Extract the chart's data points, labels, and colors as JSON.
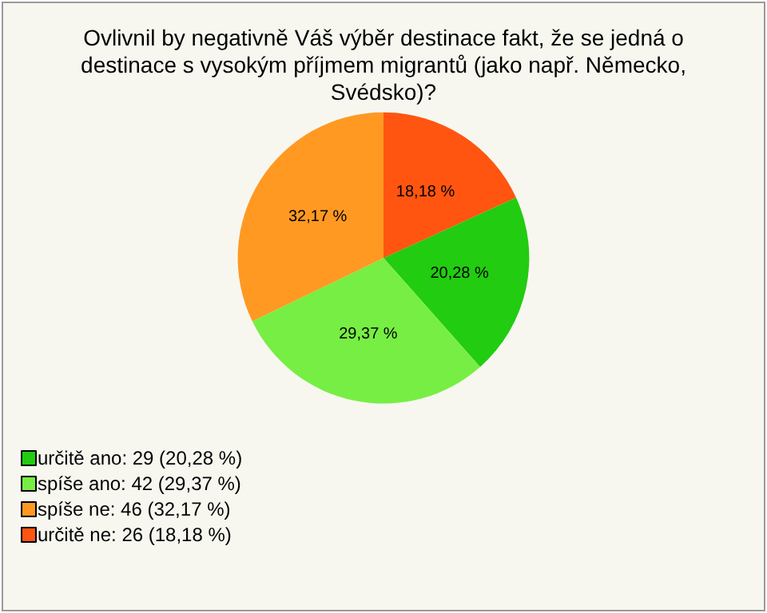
{
  "chart_data": {
    "type": "pie",
    "title": "Ovlivnil by negativně Váš výběr destinace fakt, že se jedná o\ndestinace s vysokým příjmem migrantů (jako např. Německo,\nSvédsko)?",
    "categories": [
      "určitě ano: 29 (20,28 %)",
      "spíše ano: 42 (29,37 %)",
      "spíše ne: 46 (32,17 %)",
      "určitě ne: 26 (18,18 %)"
    ],
    "values": [
      20.28,
      29.37,
      32.17,
      18.18
    ],
    "value_labels": [
      "20,28 %",
      "29,37 %",
      "32,17 %",
      "18,18 %"
    ],
    "colors": [
      "#22cc11",
      "#77ee44",
      "#ff9922",
      "#ff5511"
    ],
    "legend": "bottom left"
  }
}
